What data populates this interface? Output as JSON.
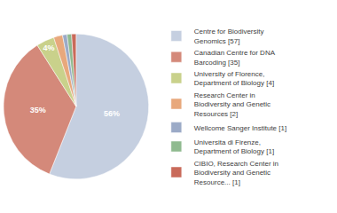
{
  "chart_data": {
    "type": "pie",
    "categories": [
      "Centre for Biodiversity\nGenomics [57]",
      "Canadian Centre for DNA\nBarcoding [35]",
      "University of Florence,\nDepartment of Biology [4]",
      "Research Center in\nBiodiversity and Genetic\nResources [2]",
      "Wellcome Sanger Institute [1]",
      "Universita di Firenze,\nDepartment of Biology [1]",
      "CIBIO, Research Center in\nBiodiversity and Genetic\nResource... [1]"
    ],
    "values": [
      56,
      35,
      4,
      2,
      1,
      1,
      1
    ],
    "value_labels": [
      "56%",
      "35%",
      "4%",
      null,
      null,
      null,
      null
    ],
    "colors": [
      "#c5cfe0",
      "#d4897a",
      "#c9d18b",
      "#e8a87c",
      "#9baac7",
      "#8fba8f",
      "#c96a5a"
    ],
    "data_labels": true,
    "legend": "right"
  }
}
